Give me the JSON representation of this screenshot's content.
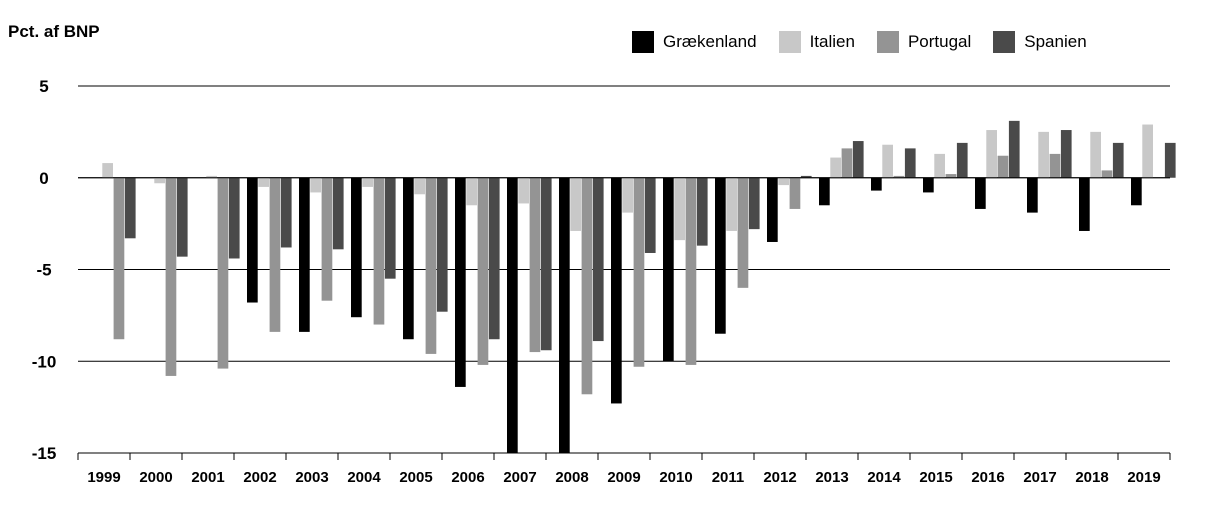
{
  "chart_data": {
    "type": "bar",
    "ylabel": "Pct. af BNP",
    "ylim": [
      -15,
      5
    ],
    "yticks": [
      "5",
      "0",
      "-5",
      "-10",
      "-15"
    ],
    "grid": true,
    "legend_position": "top-right",
    "categories": [
      "1999",
      "2000",
      "2001",
      "2002",
      "2003",
      "2004",
      "2005",
      "2006",
      "2007",
      "2008",
      "2009",
      "2010",
      "2011",
      "2012",
      "2013",
      "2014",
      "2015",
      "2016",
      "2017",
      "2018",
      "2019"
    ],
    "series": [
      {
        "name": "Grækenland",
        "color": "#000000",
        "values": [
          null,
          null,
          null,
          -6.8,
          -8.4,
          -7.6,
          -8.8,
          -11.4,
          -15.0,
          -15.0,
          -12.3,
          -10.0,
          -8.5,
          -3.5,
          -1.5,
          -0.7,
          -0.8,
          -1.7,
          -1.9,
          -2.9,
          -1.5
        ]
      },
      {
        "name": "Italien",
        "color": "#c8c8c8",
        "values": [
          0.8,
          -0.3,
          0.1,
          -0.5,
          -0.8,
          -0.5,
          -0.9,
          -1.5,
          -1.4,
          -2.9,
          -1.9,
          -3.4,
          -2.9,
          -0.4,
          1.1,
          1.8,
          1.3,
          2.6,
          2.5,
          2.5,
          2.9
        ]
      },
      {
        "name": "Portugal",
        "color": "#949494",
        "values": [
          -8.8,
          -10.8,
          -10.4,
          -8.4,
          -6.7,
          -8.0,
          -9.6,
          -10.2,
          -9.5,
          -11.8,
          -10.3,
          -10.2,
          -6.0,
          -1.7,
          1.6,
          0.1,
          0.2,
          1.2,
          1.3,
          0.4,
          null
        ]
      },
      {
        "name": "Spanien",
        "color": "#4a4a4a",
        "values": [
          -3.3,
          -4.3,
          -4.4,
          -3.8,
          -3.9,
          -5.5,
          -7.3,
          -8.8,
          -9.4,
          -8.9,
          -4.1,
          -3.7,
          -2.8,
          0.1,
          2.0,
          1.6,
          1.9,
          3.1,
          2.6,
          1.9,
          1.9
        ]
      }
    ]
  }
}
